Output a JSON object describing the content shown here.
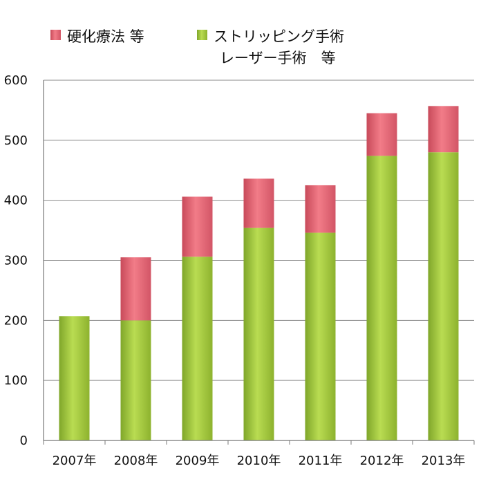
{
  "chart_data": {
    "type": "bar",
    "stacked": true,
    "categories": [
      "2007年",
      "2008年",
      "2009年",
      "2010年",
      "2011年",
      "2012年",
      "2013年"
    ],
    "series": [
      {
        "name": "ストリッピング手術 レーザー手術 等",
        "legend_lines": [
          "ストリッピング手術",
          "レーザー手術　等"
        ],
        "color": "#9dc233",
        "values": [
          207,
          200,
          306,
          354,
          346,
          474,
          480
        ]
      },
      {
        "name": "硬化療法 等",
        "legend_lines": [
          "硬化療法 等"
        ],
        "color": "#e06070",
        "values": [
          0,
          105,
          100,
          82,
          79,
          71,
          77
        ]
      }
    ],
    "yticks": [
      0,
      100,
      200,
      300,
      400,
      500,
      600
    ],
    "ylim": [
      0,
      600
    ],
    "grid": true,
    "legend_position": "top"
  }
}
